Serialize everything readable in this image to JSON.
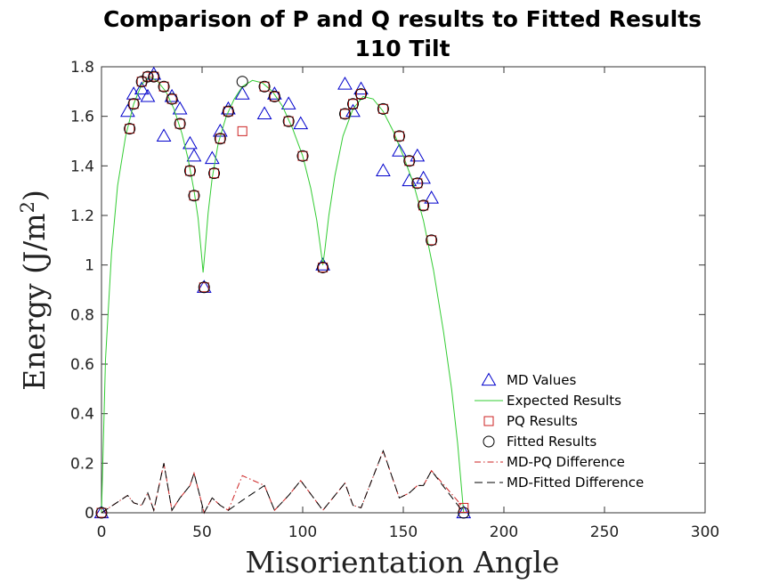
{
  "chart_data": {
    "type": "scatter",
    "title": "Comparison of P and Q results to Fitted Results",
    "subtitle": "110 Tilt",
    "xlabel": "Misorientation Angle",
    "ylabel": "Energy (J/m²)",
    "ylabel_base": "Energy (J/m",
    "ylabel_sup": "2",
    "ylabel_close": ")",
    "xlim": [
      0,
      300
    ],
    "ylim": [
      0,
      1.8
    ],
    "xticks": [
      0,
      50,
      100,
      150,
      200,
      250,
      300
    ],
    "yticks": [
      0,
      0.2,
      0.4,
      0.6,
      0.8,
      1,
      1.2,
      1.4,
      1.6,
      1.8
    ],
    "grid": false,
    "legend_position": "lower-right",
    "series": [
      {
        "name": "MD Values",
        "kind": "triangle",
        "color": "#0000cc",
        "points": [
          [
            0,
            0.0
          ],
          [
            13,
            1.62
          ],
          [
            16,
            1.69
          ],
          [
            20,
            1.71
          ],
          [
            23,
            1.68
          ],
          [
            26,
            1.77
          ],
          [
            31,
            1.52
          ],
          [
            35,
            1.68
          ],
          [
            39,
            1.63
          ],
          [
            44,
            1.49
          ],
          [
            46,
            1.44
          ],
          [
            51,
            0.91
          ],
          [
            55,
            1.43
          ],
          [
            59,
            1.54
          ],
          [
            63,
            1.63
          ],
          [
            70,
            1.69
          ],
          [
            81,
            1.61
          ],
          [
            86,
            1.69
          ],
          [
            93,
            1.65
          ],
          [
            99,
            1.57
          ],
          [
            110,
            1.0
          ],
          [
            121,
            1.73
          ],
          [
            125,
            1.62
          ],
          [
            129,
            1.71
          ],
          [
            140,
            1.38
          ],
          [
            148,
            1.46
          ],
          [
            153,
            1.34
          ],
          [
            157,
            1.44
          ],
          [
            160,
            1.35
          ],
          [
            164,
            1.27
          ],
          [
            180,
            0.0
          ]
        ]
      },
      {
        "name": "Expected Results",
        "kind": "line",
        "color": "#33cc33",
        "points": [
          [
            0,
            0.0
          ],
          [
            2,
            0.62
          ],
          [
            5,
            1.05
          ],
          [
            8,
            1.32
          ],
          [
            12,
            1.52
          ],
          [
            16,
            1.65
          ],
          [
            20,
            1.73
          ],
          [
            24,
            1.76
          ],
          [
            28,
            1.74
          ],
          [
            32,
            1.7
          ],
          [
            36,
            1.63
          ],
          [
            40,
            1.53
          ],
          [
            43,
            1.43
          ],
          [
            46,
            1.3
          ],
          [
            48,
            1.19
          ],
          [
            49.5,
            1.06
          ],
          [
            50.5,
            0.97
          ],
          [
            51.5,
            1.06
          ],
          [
            53,
            1.21
          ],
          [
            55,
            1.35
          ],
          [
            58,
            1.49
          ],
          [
            62,
            1.6
          ],
          [
            66,
            1.67
          ],
          [
            70,
            1.72
          ],
          [
            75,
            1.745
          ],
          [
            80,
            1.735
          ],
          [
            85,
            1.7
          ],
          [
            90,
            1.64
          ],
          [
            95,
            1.55
          ],
          [
            100,
            1.44
          ],
          [
            104,
            1.31
          ],
          [
            107,
            1.18
          ],
          [
            109,
            1.06
          ],
          [
            110,
            1.0
          ],
          [
            111,
            1.06
          ],
          [
            113,
            1.2
          ],
          [
            116,
            1.36
          ],
          [
            120,
            1.52
          ],
          [
            125,
            1.63
          ],
          [
            130,
            1.68
          ],
          [
            135,
            1.67
          ],
          [
            140,
            1.62
          ],
          [
            145,
            1.54
          ],
          [
            150,
            1.44
          ],
          [
            155,
            1.33
          ],
          [
            160,
            1.18
          ],
          [
            165,
            0.98
          ],
          [
            170,
            0.73
          ],
          [
            174,
            0.5
          ],
          [
            177,
            0.28
          ],
          [
            180,
            0.0
          ]
        ]
      },
      {
        "name": "PQ Results",
        "kind": "square",
        "color": "#cc2222",
        "points": [
          [
            0,
            0.0
          ],
          [
            14,
            1.55
          ],
          [
            16,
            1.65
          ],
          [
            20,
            1.74
          ],
          [
            23,
            1.76
          ],
          [
            26,
            1.76
          ],
          [
            31,
            1.72
          ],
          [
            35,
            1.67
          ],
          [
            39,
            1.57
          ],
          [
            44,
            1.38
          ],
          [
            46,
            1.28
          ],
          [
            51,
            0.91
          ],
          [
            56,
            1.37
          ],
          [
            59,
            1.51
          ],
          [
            63,
            1.62
          ],
          [
            70,
            1.54
          ],
          [
            81,
            1.72
          ],
          [
            86,
            1.68
          ],
          [
            93,
            1.58
          ],
          [
            100,
            1.44
          ],
          [
            110,
            0.99
          ],
          [
            121,
            1.61
          ],
          [
            125,
            1.65
          ],
          [
            129,
            1.69
          ],
          [
            140,
            1.63
          ],
          [
            148,
            1.52
          ],
          [
            153,
            1.42
          ],
          [
            157,
            1.33
          ],
          [
            160,
            1.24
          ],
          [
            164,
            1.1
          ],
          [
            180,
            0.02
          ]
        ]
      },
      {
        "name": "Fitted Results",
        "kind": "circle",
        "color": "#000000",
        "points": [
          [
            0,
            0.0
          ],
          [
            14,
            1.55
          ],
          [
            16,
            1.65
          ],
          [
            20,
            1.74
          ],
          [
            23,
            1.76
          ],
          [
            26,
            1.76
          ],
          [
            31,
            1.72
          ],
          [
            35,
            1.67
          ],
          [
            39,
            1.57
          ],
          [
            44,
            1.38
          ],
          [
            46,
            1.28
          ],
          [
            51,
            0.91
          ],
          [
            56,
            1.37
          ],
          [
            59,
            1.51
          ],
          [
            63,
            1.62
          ],
          [
            70,
            1.74
          ],
          [
            81,
            1.72
          ],
          [
            86,
            1.68
          ],
          [
            93,
            1.58
          ],
          [
            100,
            1.44
          ],
          [
            110,
            0.99
          ],
          [
            121,
            1.61
          ],
          [
            125,
            1.65
          ],
          [
            129,
            1.69
          ],
          [
            140,
            1.63
          ],
          [
            148,
            1.52
          ],
          [
            153,
            1.42
          ],
          [
            157,
            1.33
          ],
          [
            160,
            1.24
          ],
          [
            164,
            1.1
          ],
          [
            180,
            0.0
          ]
        ]
      },
      {
        "name": "MD-PQ Difference",
        "kind": "dashdot",
        "color": "#cc2222",
        "points": [
          [
            0,
            0.0
          ],
          [
            13,
            0.07
          ],
          [
            16,
            0.04
          ],
          [
            20,
            0.03
          ],
          [
            23,
            0.08
          ],
          [
            26,
            0.01
          ],
          [
            31,
            0.2
          ],
          [
            35,
            0.01
          ],
          [
            39,
            0.06
          ],
          [
            44,
            0.11
          ],
          [
            46,
            0.16
          ],
          [
            51,
            0.0
          ],
          [
            55,
            0.06
          ],
          [
            59,
            0.03
          ],
          [
            63,
            0.01
          ],
          [
            70,
            0.15
          ],
          [
            81,
            0.11
          ],
          [
            86,
            0.01
          ],
          [
            93,
            0.07
          ],
          [
            99,
            0.13
          ],
          [
            110,
            0.01
          ],
          [
            121,
            0.12
          ],
          [
            125,
            0.03
          ],
          [
            129,
            0.02
          ],
          [
            140,
            0.25
          ],
          [
            148,
            0.06
          ],
          [
            153,
            0.08
          ],
          [
            157,
            0.11
          ],
          [
            160,
            0.11
          ],
          [
            164,
            0.17
          ],
          [
            180,
            0.02
          ]
        ]
      },
      {
        "name": "MD-Fitted Difference",
        "kind": "dash",
        "color": "#000000",
        "points": [
          [
            0,
            0.0
          ],
          [
            13,
            0.07
          ],
          [
            16,
            0.04
          ],
          [
            20,
            0.03
          ],
          [
            23,
            0.08
          ],
          [
            26,
            0.01
          ],
          [
            31,
            0.2
          ],
          [
            35,
            0.01
          ],
          [
            39,
            0.06
          ],
          [
            44,
            0.11
          ],
          [
            46,
            0.16
          ],
          [
            51,
            0.0
          ],
          [
            55,
            0.06
          ],
          [
            59,
            0.03
          ],
          [
            63,
            0.01
          ],
          [
            70,
            0.05
          ],
          [
            81,
            0.11
          ],
          [
            86,
            0.01
          ],
          [
            93,
            0.07
          ],
          [
            99,
            0.13
          ],
          [
            110,
            0.01
          ],
          [
            121,
            0.12
          ],
          [
            125,
            0.03
          ],
          [
            129,
            0.02
          ],
          [
            140,
            0.25
          ],
          [
            148,
            0.06
          ],
          [
            153,
            0.08
          ],
          [
            157,
            0.11
          ],
          [
            160,
            0.11
          ],
          [
            164,
            0.17
          ],
          [
            180,
            0.0
          ]
        ]
      }
    ]
  }
}
